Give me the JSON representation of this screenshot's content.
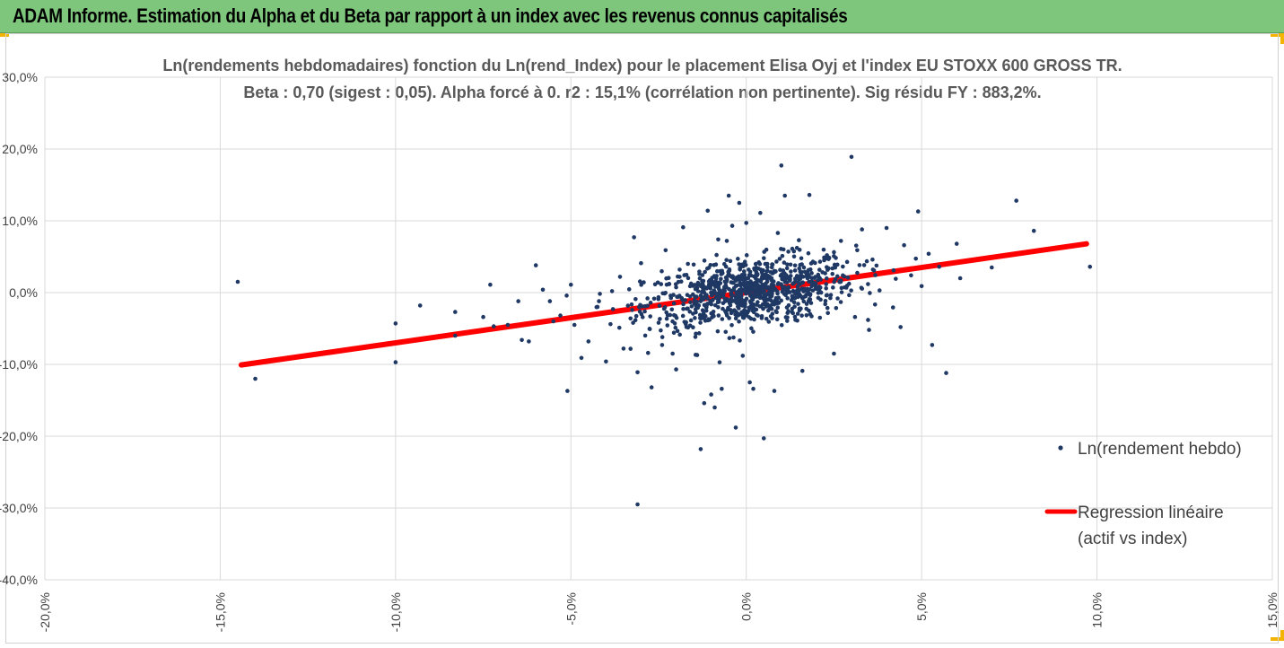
{
  "header": {
    "title": "ADAM Informe. Estimation du Alpha et du Beta par rapport à un index avec les revenus connus capitalisés"
  },
  "colors": {
    "banner": "#7dc67b",
    "points": "#1f3864",
    "regression": "#ff0000",
    "grid": "#d9d9d9",
    "accent": "#f2b400"
  },
  "chart_data": {
    "type": "scatter",
    "title_line1": "Ln(rendements hebdomadaires) fonction du Ln(rend_Index) pour le placement Elisa Oyj et l'index EU STOXX 600 GROSS TR.",
    "title_line2": "Beta : 0,70 (sigest : 0,05).  Alpha forcé à 0. r2 : 15,1% (corrélation non pertinente). Sig résidu FY : 883,2%.",
    "xlim": [
      -20,
      15
    ],
    "ylim": [
      -40,
      30
    ],
    "x_ticks": [
      "-20,0%",
      "-15,0%",
      "-10,0%",
      "-5,0%",
      "0,0%",
      "5,0%",
      "10,0%",
      "15,0%"
    ],
    "y_ticks": [
      "30,0%",
      "20,0%",
      "10,0%",
      "0,0%",
      "-10,0%",
      "-20,0%",
      "-30,0%",
      "-40,0%"
    ],
    "grid": true,
    "legend_position": "right",
    "series": [
      {
        "name": "Ln(rendement hebdo)",
        "kind": "points",
        "points": [
          [
            -14.5,
            1.5
          ],
          [
            -14.0,
            -12.0
          ],
          [
            -10.0,
            -4.3
          ],
          [
            -10.0,
            -9.7
          ],
          [
            -9.3,
            -1.8
          ],
          [
            -8.3,
            -2.7
          ],
          [
            -8.3,
            -6.0
          ],
          [
            -7.5,
            -3.4
          ],
          [
            -7.3,
            1.1
          ],
          [
            -7.2,
            -4.7
          ],
          [
            -6.8,
            -4.5
          ],
          [
            -6.5,
            -1.2
          ],
          [
            -6.4,
            -6.6
          ],
          [
            -6.2,
            -6.8
          ],
          [
            -6.0,
            3.8
          ],
          [
            -5.8,
            0.4
          ],
          [
            -5.6,
            -1.2
          ],
          [
            -5.5,
            -4.0
          ],
          [
            -5.3,
            -3.2
          ],
          [
            -5.1,
            -13.7
          ],
          [
            -5.0,
            1.1
          ],
          [
            -4.9,
            -4.5
          ],
          [
            -4.7,
            -9.1
          ],
          [
            -4.5,
            -6.8
          ],
          [
            -4.2,
            -1.2
          ],
          [
            -4.0,
            -9.6
          ],
          [
            -3.8,
            -2.3
          ],
          [
            -3.6,
            2.2
          ],
          [
            -3.5,
            -7.8
          ],
          [
            -3.3,
            -3.6
          ],
          [
            -3.2,
            7.7
          ],
          [
            -3.1,
            -11.1
          ],
          [
            -3.1,
            -29.5
          ],
          [
            -3.0,
            4.1
          ],
          [
            -2.8,
            -8.4
          ],
          [
            -2.7,
            -13.2
          ],
          [
            -2.5,
            -4.2
          ],
          [
            -2.4,
            -7.3
          ],
          [
            -2.3,
            5.9
          ],
          [
            -2.1,
            -8.5
          ],
          [
            -2.0,
            -10.7
          ],
          [
            -1.9,
            3.2
          ],
          [
            -1.8,
            9.1
          ],
          [
            -1.6,
            -4.6
          ],
          [
            -1.5,
            3.9
          ],
          [
            -1.4,
            -8.7
          ],
          [
            -1.3,
            -21.8
          ],
          [
            -1.2,
            -15.4
          ],
          [
            -1.1,
            11.4
          ],
          [
            -1.0,
            -14.2
          ],
          [
            -0.9,
            -16.0
          ],
          [
            -0.8,
            7.4
          ],
          [
            -0.7,
            -13.4
          ],
          [
            -0.6,
            -1.2
          ],
          [
            -0.5,
            13.5
          ],
          [
            -0.4,
            9.3
          ],
          [
            -0.3,
            -18.8
          ],
          [
            -0.2,
            12.5
          ],
          [
            -0.1,
            -8.8
          ],
          [
            0.0,
            9.7
          ],
          [
            0.1,
            -12.5
          ],
          [
            0.2,
            -13.4
          ],
          [
            0.3,
            -1.7
          ],
          [
            0.4,
            11.1
          ],
          [
            0.5,
            -20.3
          ],
          [
            0.6,
            4.0
          ],
          [
            0.7,
            -3.3
          ],
          [
            0.8,
            -13.7
          ],
          [
            0.9,
            8.3
          ],
          [
            1.0,
            17.7
          ],
          [
            1.1,
            13.5
          ],
          [
            1.2,
            5.7
          ],
          [
            1.4,
            -3.8
          ],
          [
            1.5,
            7.3
          ],
          [
            1.6,
            -10.9
          ],
          [
            1.8,
            13.6
          ],
          [
            1.9,
            4.3
          ],
          [
            2.1,
            -3.5
          ],
          [
            2.3,
            5.2
          ],
          [
            2.5,
            -8.5
          ],
          [
            2.7,
            7.2
          ],
          [
            2.9,
            2.1
          ],
          [
            3.0,
            18.9
          ],
          [
            3.1,
            -3.4
          ],
          [
            3.3,
            8.8
          ],
          [
            3.5,
            -5.2
          ],
          [
            3.6,
            4.6
          ],
          [
            3.8,
            0.3
          ],
          [
            4.0,
            9.0
          ],
          [
            4.2,
            3.1
          ],
          [
            4.4,
            -4.8
          ],
          [
            4.5,
            6.6
          ],
          [
            4.7,
            2.4
          ],
          [
            4.9,
            11.3
          ],
          [
            5.0,
            0.9
          ],
          [
            5.2,
            5.4
          ],
          [
            5.3,
            -7.3
          ],
          [
            5.5,
            3.6
          ],
          [
            5.7,
            -11.2
          ],
          [
            6.0,
            6.8
          ],
          [
            6.1,
            2.0
          ],
          [
            7.0,
            3.5
          ],
          [
            7.7,
            12.8
          ],
          [
            8.2,
            8.6
          ],
          [
            9.8,
            3.6
          ]
        ]
      },
      {
        "name": "Regression linéaire (actif vs index)",
        "kind": "line",
        "label_line1": "Regression linéaire",
        "label_line2": "(actif vs index)",
        "slope": 0.7,
        "intercept": 0,
        "x": [
          -14.4,
          9.7
        ]
      }
    ]
  }
}
